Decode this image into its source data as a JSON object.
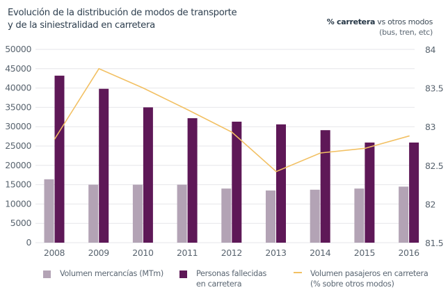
{
  "chart_data": {
    "type": "bar",
    "title": "Evolución de la distribución de modos de transporte\ny de la siniestralidad en carretera",
    "title_lines": [
      "Evolución de la distribución de modos de transporte",
      "y de la siniestralidad en carretera"
    ],
    "right_axis_title": {
      "bold": "% carretera",
      "rest": " vs otros modos",
      "sub": "(bus, tren, etc)"
    },
    "categories": [
      "2008",
      "2009",
      "2010",
      "2011",
      "2012",
      "2013",
      "2014",
      "2015",
      "2016"
    ],
    "y_left": {
      "range": [
        0,
        50000
      ],
      "ticks": [
        "0",
        "5000",
        "10000",
        "15000",
        "20000",
        "25000",
        "30000",
        "35000",
        "40000",
        "45000",
        "50000"
      ]
    },
    "y_right": {
      "range": [
        81.5,
        84
      ],
      "ticks": [
        "81.5",
        "82",
        "82.5",
        "83",
        "83.5",
        "84"
      ]
    },
    "grid": true,
    "legend_position": "bottom",
    "series": [
      {
        "name": "Volumen mercancías (MTm)",
        "type": "bar",
        "axis": "left",
        "color": "#b3a3b5",
        "values": [
          16400,
          15000,
          15000,
          15000,
          14000,
          13500,
          13700,
          14000,
          14500
        ]
      },
      {
        "name": "Personas fallecidas en carretera",
        "type": "bar",
        "axis": "left",
        "color": "#5e1857",
        "values": [
          43200,
          39800,
          35000,
          32200,
          31300,
          30600,
          29100,
          25900,
          25900
        ]
      },
      {
        "name": "Volumen pasajeros en carretera (% sobre otros modos)",
        "type": "line",
        "axis": "right",
        "color": "#f2c063",
        "values": [
          82.84,
          83.75,
          83.5,
          83.22,
          82.93,
          82.42,
          82.66,
          82.72,
          82.88
        ]
      }
    ],
    "legend": [
      {
        "label": "Volumen mercancías (MTm)",
        "kind": "swatch",
        "color": "#b3a3b5"
      },
      {
        "label": "Personas fallecidas\nen carretera",
        "kind": "swatch",
        "color": "#5e1857"
      },
      {
        "label": "Volumen pasajeros en carretera\n(% sobre otros modos)",
        "kind": "line",
        "color": "#f2c063"
      }
    ]
  }
}
